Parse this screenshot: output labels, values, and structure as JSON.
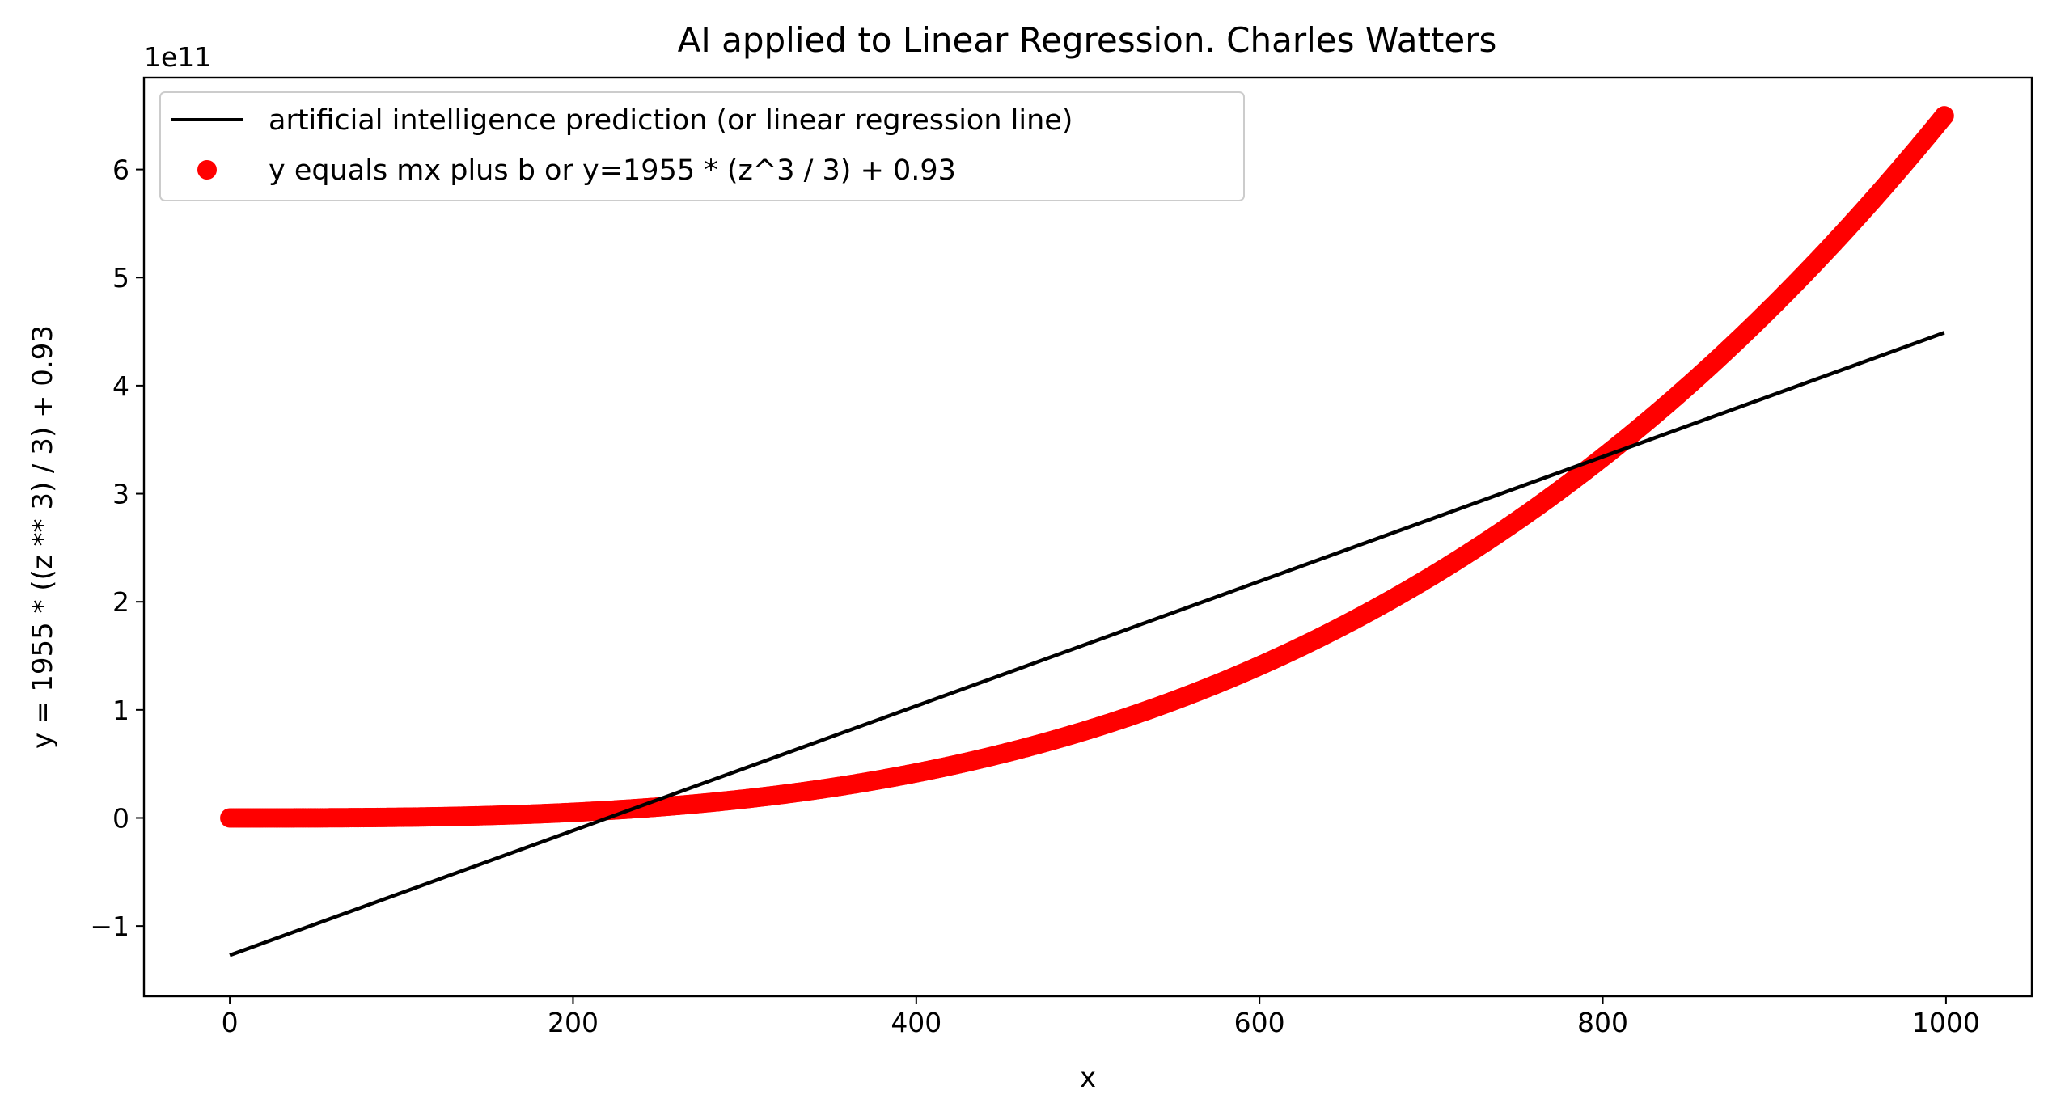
{
  "chart_data": {
    "type": "scatter",
    "title": "AI applied to Linear Regression. Charles Watters",
    "xlabel": "x",
    "ylabel": "y = 1955 * ((z ** 3) / 3) + 0.93",
    "y_offset_label": "1e11",
    "xlim": [
      -50,
      1050
    ],
    "ylim": [
      -1.65,
      6.85
    ],
    "y_scale_factor": 100000000000,
    "x_ticks": [
      0,
      200,
      400,
      600,
      800,
      1000
    ],
    "x_tick_labels": [
      "0",
      "200",
      "400",
      "600",
      "800",
      "1000"
    ],
    "y_ticks": [
      -1,
      0,
      1,
      2,
      3,
      4,
      5,
      6
    ],
    "y_tick_labels": [
      "−1",
      "0",
      "1",
      "2",
      "3",
      "4",
      "5",
      "6"
    ],
    "grid": false,
    "legend_position": "top-left",
    "series": [
      {
        "name": "artificial intelligence prediction (or linear regression line)",
        "kind": "line",
        "color": "#000000",
        "x": [
          0,
          999
        ],
        "y": [
          -1.27,
          4.49
        ]
      },
      {
        "name": "y equals mx plus b or y=1955 * (z^3 / 3) + 0.93",
        "kind": "scatter",
        "color": "#ff0000",
        "formula": "y = 1955 * (z^3 / 3) + 0.93",
        "x_range": [
          0,
          999
        ],
        "x_step": 1
      }
    ]
  }
}
